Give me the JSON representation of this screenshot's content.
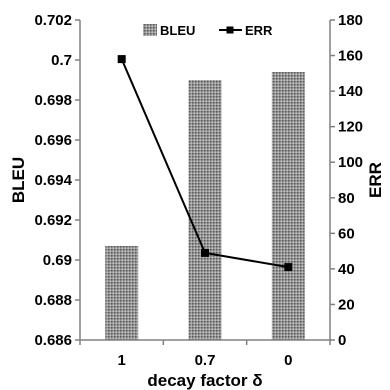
{
  "chart_data": {
    "type": "bar",
    "categories": [
      "1",
      "0.7",
      "0"
    ],
    "xlabel": "decay factor δ",
    "series": [
      {
        "name": "BLEU",
        "kind": "bar",
        "axis": "left",
        "values": [
          0.6907,
          0.699,
          0.6994
        ]
      },
      {
        "name": "ERR",
        "kind": "line",
        "axis": "right",
        "values": [
          158,
          49,
          41
        ]
      }
    ],
    "y_left": {
      "label": "BLEU",
      "range": [
        0.686,
        0.702
      ],
      "ticks": [
        "0.686",
        "0.688",
        "0.69",
        "0.692",
        "0.694",
        "0.696",
        "0.698",
        "0.7",
        "0.702"
      ]
    },
    "y_right": {
      "label": "ERR",
      "range": [
        0,
        180
      ],
      "ticks": [
        "0",
        "20",
        "40",
        "60",
        "80",
        "100",
        "120",
        "140",
        "160",
        "180"
      ]
    },
    "legend": "top",
    "grid": false,
    "colors": {
      "bar_fill": "#8c8c8c",
      "line": "#000000",
      "axis": "#808080"
    }
  }
}
